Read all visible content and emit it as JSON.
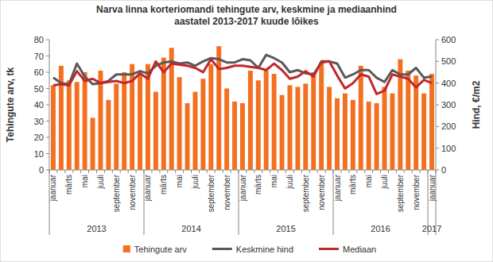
{
  "chart_data": {
    "type": "bar",
    "title": "Narva linna korteriomandi tehingute arv, keskmine ja mediaanhind\naastatel 2013-2017 kuude lõikes",
    "y_label": "Tehingute arv, tk",
    "y2_label": "Hind, €/m2",
    "categories": [
      "jaanuar",
      null,
      "märts",
      null,
      "mai",
      null,
      "juuli",
      null,
      "september",
      null,
      "november",
      null,
      "jaanuar",
      null,
      "märts",
      null,
      "mai",
      null,
      "juuli",
      null,
      "september",
      null,
      "november",
      null,
      "jaanuar",
      null,
      "märts",
      null,
      "mai",
      null,
      "juuli",
      null,
      "september",
      null,
      "november",
      null,
      "jaanuar",
      null,
      "märts",
      null,
      "mai",
      null,
      "juuli",
      null,
      "september",
      null,
      "november",
      null,
      "jaanuar"
    ],
    "years": [
      "2013",
      "2013",
      "2013",
      "2013",
      "2013",
      "2013",
      "2013",
      "2013",
      "2013",
      "2013",
      "2013",
      "2013",
      "2014",
      "2014",
      "2014",
      "2014",
      "2014",
      "2014",
      "2014",
      "2014",
      "2014",
      "2014",
      "2014",
      "2014",
      "2015",
      "2015",
      "2015",
      "2015",
      "2015",
      "2015",
      "2015",
      "2015",
      "2015",
      "2015",
      "2015",
      "2015",
      "2016",
      "2016",
      "2016",
      "2016",
      "2016",
      "2016",
      "2016",
      "2016",
      "2016",
      "2016",
      "2016",
      "2016",
      "2017"
    ],
    "series": [
      {
        "name": "Tehingute arv",
        "type": "bar",
        "color": "#f37021",
        "values": [
          52,
          64,
          55,
          54,
          60,
          32,
          61,
          43,
          53,
          60,
          65,
          58,
          65,
          48,
          69,
          75,
          57,
          41,
          48,
          56,
          65,
          76,
          50,
          42,
          41,
          61,
          55,
          61,
          59,
          46,
          52,
          51,
          53,
          60,
          66,
          51,
          44,
          47,
          43,
          64,
          42,
          41,
          51,
          47,
          68,
          61,
          58,
          47,
          59
        ]
      },
      {
        "name": "Keskmine hind",
        "type": "line",
        "axis": "y2",
        "color": "#595959",
        "values": [
          425,
          400,
          395,
          490,
          430,
          395,
          400,
          410,
          440,
          440,
          440,
          455,
          445,
          480,
          495,
          500,
          490,
          495,
          480,
          500,
          515,
          510,
          495,
          495,
          510,
          505,
          470,
          530,
          515,
          495,
          450,
          460,
          445,
          440,
          495,
          500,
          490,
          425,
          440,
          460,
          460,
          425,
          405,
          460,
          440,
          440,
          470,
          425,
          430
        ]
      },
      {
        "name": "Mediaan",
        "type": "line",
        "axis": "y2",
        "color": "#c0282d",
        "values": [
          390,
          395,
          390,
          455,
          410,
          420,
          400,
          405,
          410,
          400,
          410,
          445,
          420,
          500,
          450,
          490,
          485,
          480,
          470,
          450,
          510,
          465,
          470,
          480,
          480,
          475,
          470,
          460,
          490,
          460,
          420,
          430,
          455,
          430,
          500,
          500,
          435,
          375,
          400,
          440,
          430,
          350,
          365,
          440,
          430,
          420,
          380,
          415,
          400
        ]
      }
    ],
    "ylim": [
      0,
      80
    ],
    "yticks": [
      0,
      10,
      20,
      30,
      40,
      50,
      60,
      70,
      80
    ],
    "y2lim": [
      0,
      600
    ],
    "y2ticks": [
      0,
      100,
      200,
      300,
      400,
      500,
      600
    ],
    "grid": false,
    "legend": "bottom"
  }
}
